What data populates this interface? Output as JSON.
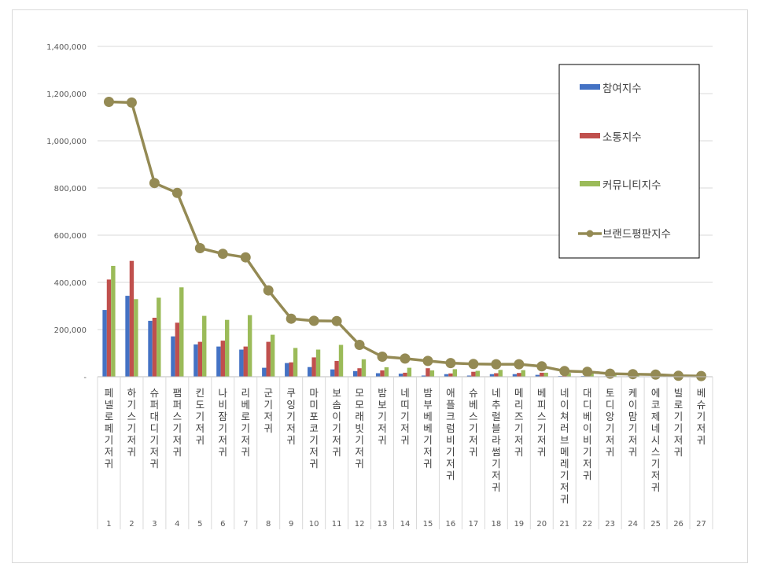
{
  "chart_data": {
    "type": "bar",
    "title": "",
    "xlabel": "",
    "ylabel": "",
    "ylim": [
      0,
      1400000
    ],
    "y_ticks": [
      {
        "value": 0,
        "label": "-"
      },
      {
        "value": 200000,
        "label": "200,000"
      },
      {
        "value": 400000,
        "label": "400,000"
      },
      {
        "value": 600000,
        "label": "600,000"
      },
      {
        "value": 800000,
        "label": "800,000"
      },
      {
        "value": 1000000,
        "label": "1,000,000"
      },
      {
        "value": 1200000,
        "label": "1,200,000"
      },
      {
        "value": 1400000,
        "label": "1,400,000"
      }
    ],
    "grid": true,
    "legend_position": "top-right",
    "categories": [
      "페넬로페기저귀",
      "하기스기저귀",
      "슈퍼대디기저귀",
      "팸퍼스기저귀",
      "킨도기저귀",
      "나비잠기저귀",
      "리베로기저귀",
      "군기저귀",
      "쿠잉기저귀",
      "마미포코기저귀",
      "보솜이기저귀",
      "모모래빗기저귀",
      "밤보기저귀",
      "네띠기저귀",
      "밤부베베기저귀",
      "애플크럼비기저귀",
      "슈베스기저귀",
      "네추럴블라썸기저귀",
      "메리즈기저귀",
      "베피스기저귀",
      "네이쳐러브메레기저귀",
      "대디베이비기저귀",
      "토디앙기저귀",
      "케이맘기저귀",
      "에코제네시스기저귀",
      "빌로기기저귀",
      "베슈기저귀"
    ],
    "ranks": [
      "1",
      "2",
      "3",
      "4",
      "5",
      "6",
      "7",
      "8",
      "9",
      "10",
      "11",
      "12",
      "13",
      "14",
      "15",
      "16",
      "17",
      "18",
      "19",
      "20",
      "21",
      "22",
      "23",
      "24",
      "25",
      "26",
      "27"
    ],
    "series": [
      {
        "name": "참여지수",
        "kind": "bar",
        "color": "#4472c4",
        "values": [
          283000,
          343000,
          237000,
          171000,
          137000,
          128000,
          115000,
          38000,
          58000,
          41000,
          31000,
          24000,
          15000,
          13000,
          5000,
          11000,
          5000,
          11000,
          11000,
          8000,
          3000,
          3000,
          2000,
          2000,
          1500,
          1000,
          1000
        ]
      },
      {
        "name": "소통지수",
        "kind": "bar",
        "color": "#c0504d",
        "values": [
          412000,
          491000,
          250000,
          229000,
          148000,
          153000,
          128000,
          148000,
          61000,
          82000,
          67000,
          36000,
          27000,
          17000,
          36000,
          14000,
          21000,
          15000,
          16000,
          17000,
          5000,
          5000,
          3000,
          3000,
          2000,
          1500,
          1500
        ]
      },
      {
        "name": "커뮤니티지수",
        "kind": "bar",
        "color": "#9bbb59",
        "values": [
          470000,
          329000,
          335000,
          379000,
          258000,
          241000,
          261000,
          178000,
          122000,
          115000,
          135000,
          74000,
          40000,
          38000,
          27000,
          32000,
          25000,
          29000,
          28000,
          17000,
          16000,
          15000,
          8000,
          7000,
          5000,
          2000,
          2000
        ]
      },
      {
        "name": "브랜드평판지수",
        "kind": "line",
        "color": "#948a54",
        "values": [
          1165000,
          1162000,
          821000,
          779000,
          545000,
          521000,
          506000,
          366000,
          246000,
          237000,
          236000,
          135000,
          85000,
          77000,
          67000,
          58000,
          54000,
          53000,
          53000,
          44000,
          24000,
          21000,
          13000,
          11000,
          9000,
          4000,
          3000
        ]
      }
    ]
  }
}
